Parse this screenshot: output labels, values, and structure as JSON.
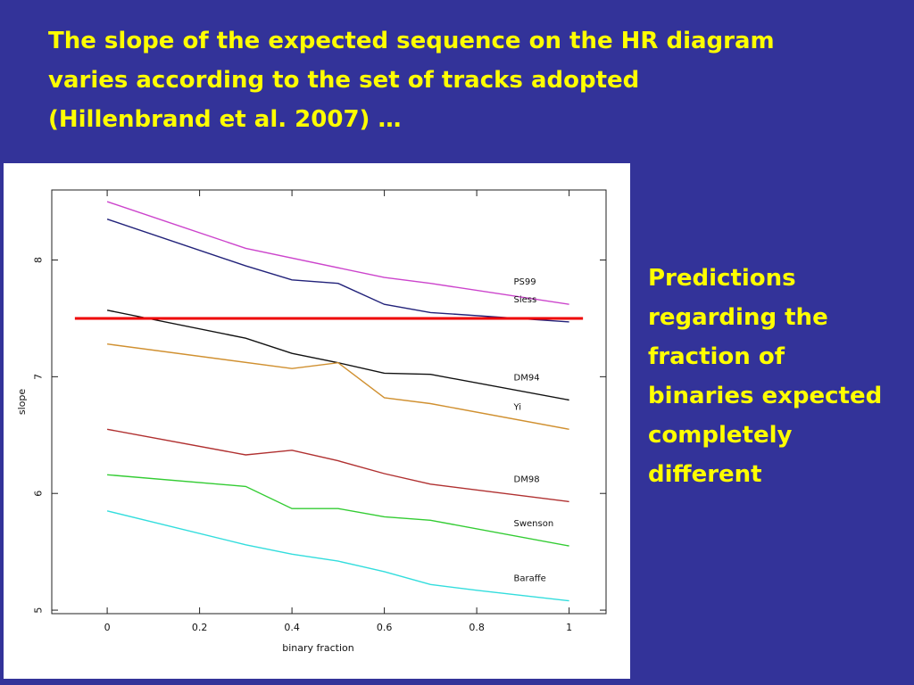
{
  "slide": {
    "title_lines": [
      "The slope of the expected sequence on the HR diagram",
      "varies according to the set of tracks adopted",
      "(Hillenbrand et al. 2007) …"
    ],
    "side_text_lines": [
      "Predictions",
      "regarding the",
      "fraction of",
      "binaries expected",
      "completely",
      "different"
    ],
    "colors": {
      "background": "#333399",
      "text": "#ffff00",
      "chart_background": "#ffffff"
    }
  },
  "chart_data": {
    "type": "line",
    "xlabel": "binary fraction",
    "ylabel": "slope",
    "xlim": [
      -0.12,
      1.08
    ],
    "ylim": [
      4.97,
      8.6
    ],
    "xticks": [
      0,
      0.2,
      0.4,
      0.6,
      0.8,
      1
    ],
    "xtick_labels": [
      "0",
      "0.2",
      "0.4",
      "0.6",
      "0.8",
      "1"
    ],
    "yticks": [
      5,
      6,
      7,
      8
    ],
    "ytick_labels": [
      "5",
      "6",
      "7",
      "8"
    ],
    "grid": false,
    "legend": "none",
    "series": [
      {
        "name": "PS99",
        "color": "#cc44cc",
        "x": [
          0,
          0.3,
          0.6,
          0.7,
          1
        ],
        "y": [
          8.5,
          8.1,
          7.85,
          7.8,
          7.62
        ]
      },
      {
        "name": "Siess",
        "color": "#22227a",
        "x": [
          0,
          0.3,
          0.4,
          0.5,
          0.6,
          0.7,
          1
        ],
        "y": [
          8.35,
          7.95,
          7.83,
          7.8,
          7.62,
          7.55,
          7.47
        ]
      },
      {
        "name": "DM94",
        "color": "#111111",
        "x": [
          0,
          0.3,
          0.4,
          0.5,
          0.6,
          0.7,
          1
        ],
        "y": [
          7.57,
          7.33,
          7.2,
          7.12,
          7.03,
          7.02,
          6.8
        ]
      },
      {
        "name": "Yi",
        "color": "#d09030",
        "x": [
          0,
          0.4,
          0.5,
          0.6,
          0.7,
          1
        ],
        "y": [
          7.28,
          7.07,
          7.12,
          6.82,
          6.77,
          6.55
        ]
      },
      {
        "name": "DM98",
        "color": "#b03030",
        "x": [
          0,
          0.3,
          0.4,
          0.5,
          0.6,
          0.7,
          1
        ],
        "y": [
          6.55,
          6.33,
          6.37,
          6.28,
          6.17,
          6.08,
          5.93
        ]
      },
      {
        "name": "Swenson",
        "color": "#33cc33",
        "x": [
          0,
          0.3,
          0.4,
          0.5,
          0.6,
          0.7,
          1
        ],
        "y": [
          6.16,
          6.06,
          5.87,
          5.87,
          5.8,
          5.77,
          5.55
        ]
      },
      {
        "name": "Baraffe",
        "color": "#33dddd",
        "x": [
          0,
          0.3,
          0.4,
          0.5,
          0.6,
          0.7,
          0.8,
          1
        ],
        "y": [
          5.85,
          5.56,
          5.48,
          5.42,
          5.33,
          5.22,
          5.17,
          5.08
        ]
      }
    ],
    "reference_line": {
      "color": "#ee0000",
      "x": [
        -0.07,
        1.03
      ],
      "y": 7.5
    }
  }
}
